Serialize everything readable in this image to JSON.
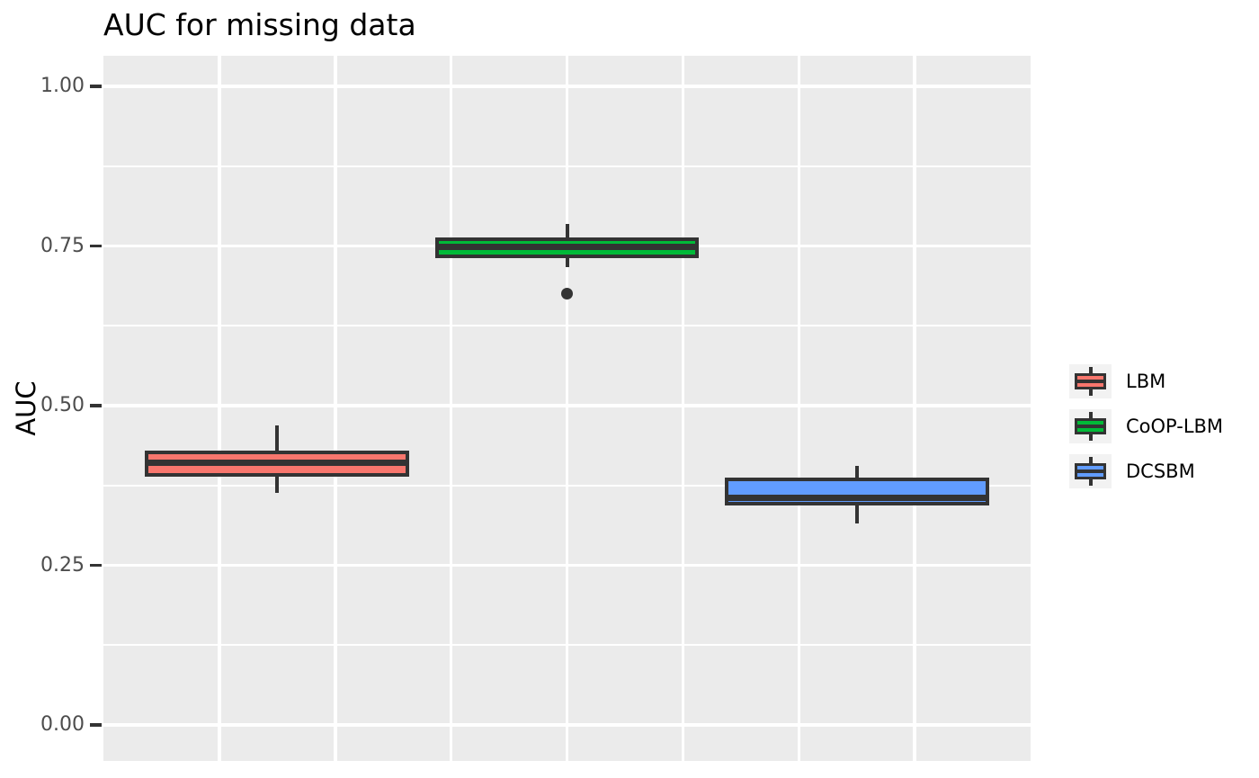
{
  "page": {
    "title": "AUC for missing data"
  },
  "chart_data": {
    "type": "boxplot",
    "title": "AUC for missing data",
    "xlabel": "",
    "ylabel": "AUC",
    "ylim": [
      -0.05,
      1.05
    ],
    "y_major_breaks": [
      1.0,
      0.75,
      0.5,
      0.25,
      0.0
    ],
    "y_tick_labels": [
      "1.00",
      "0.75",
      "0.50",
      "0.25",
      "0.00"
    ],
    "y_minor_breaks": [
      0.875,
      0.625,
      0.375,
      0.125
    ],
    "xlim": [
      0.4,
      3.6
    ],
    "x_gridline_positions": [
      0.8,
      1.2,
      1.6,
      2.0,
      2.4,
      2.8,
      3.2
    ],
    "x_tick_labels": [],
    "grid": true,
    "legend_position": "right",
    "box_width": 0.9,
    "series": [
      {
        "name": "LBM",
        "fill": "#F8766D",
        "x": 1,
        "whisker_low": 0.363,
        "q1": 0.391,
        "median": 0.411,
        "q3": 0.427,
        "whisker_high": 0.469,
        "outliers": []
      },
      {
        "name": "CoOP-LBM",
        "fill": "#00BA38",
        "x": 2,
        "whisker_low": 0.717,
        "q1": 0.734,
        "median": 0.748,
        "q3": 0.76,
        "whisker_high": 0.785,
        "outliers": [
          0.676
        ]
      },
      {
        "name": "DCSBM",
        "fill": "#619CFF",
        "x": 3,
        "whisker_low": 0.316,
        "q1": 0.346,
        "median": 0.356,
        "q3": 0.384,
        "whisker_high": 0.406,
        "outliers": []
      }
    ],
    "colors": {
      "panel_bg": "#EBEBEB",
      "grid": "#FFFFFF",
      "box_border": "#333333",
      "tick_text": "#4D4D4D",
      "title_text": "#000000",
      "legend_key_bg": "#F2F2F2"
    }
  }
}
